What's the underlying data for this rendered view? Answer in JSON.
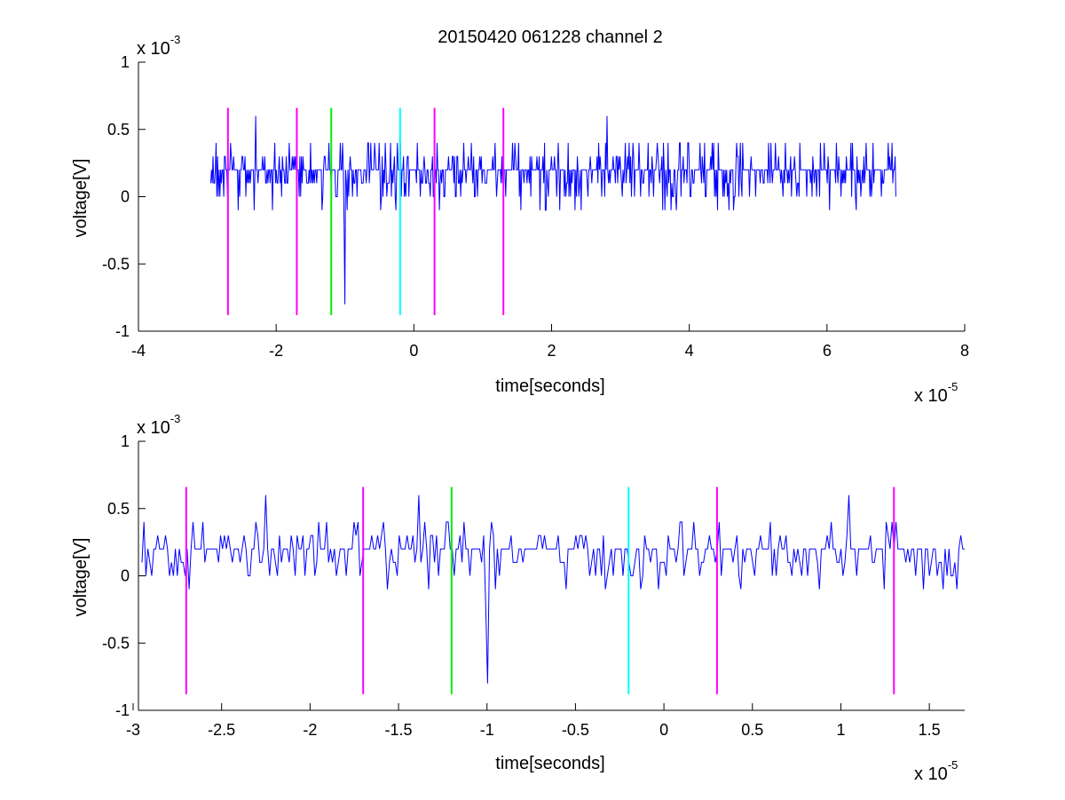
{
  "figure": {
    "title": "20150420 061228 channel 2"
  },
  "colors": {
    "signal": "#0000ff",
    "magenta_marker": "#ff00ff",
    "green_marker": "#00ee00",
    "cyan_marker": "#00ffff",
    "axes": "#000000",
    "background": "#ffffff"
  },
  "chart_data": [
    {
      "type": "line",
      "title": "20150420 061228 channel 2",
      "xlabel": "time[seconds]",
      "ylabel": "voltage[V]",
      "xlim": [
        -4e-05,
        8e-05
      ],
      "ylim": [
        -0.001,
        0.001
      ],
      "xticks": [
        -4,
        -2,
        0,
        2,
        4,
        6,
        8
      ],
      "xtick_labels": [
        "-4",
        "-2",
        "0",
        "2",
        "4",
        "6",
        "8"
      ],
      "yticks": [
        -1,
        -0.5,
        0,
        0.5,
        1
      ],
      "ytick_labels": [
        "-1",
        "-0.5",
        "0",
        "0.5",
        "1"
      ],
      "x_multiplier_label": "x 10",
      "x_multiplier_exp": "-5",
      "y_multiplier_label": "x 10",
      "y_multiplier_exp": "-3",
      "grid": false,
      "series": [
        {
          "style": "signal trace (quantized noise, 0.2e-3 V steps)",
          "x_range": [
            -2.95e-05,
            7e-05
          ],
          "level_values": [
            -0.0002,
            0,
            0.0002,
            0.0004,
            0.0006
          ],
          "notable_dip": {
            "x": -1e-05,
            "y": -0.0008
          },
          "notable_peaks": [
            {
              "x": -2.3e-05,
              "y": 0.0006
            },
            {
              "x": 2.8e-05,
              "y": 0.0006
            }
          ]
        }
      ],
      "markers": [
        {
          "x": -2.7e-05,
          "color": "magenta",
          "y": [
            -0.00088,
            0.00066
          ]
        },
        {
          "x": -1.7e-05,
          "color": "magenta",
          "y": [
            -0.00088,
            0.00066
          ]
        },
        {
          "x": -1.2e-05,
          "color": "green",
          "y": [
            -0.00088,
            0.00066
          ]
        },
        {
          "x": -2e-06,
          "color": "cyan",
          "y": [
            -0.00088,
            0.00066
          ]
        },
        {
          "x": 3e-06,
          "color": "magenta",
          "y": [
            -0.00088,
            0.00066
          ]
        },
        {
          "x": 1.3e-05,
          "color": "magenta",
          "y": [
            -0.00088,
            0.00066
          ]
        }
      ]
    },
    {
      "type": "line",
      "title": "",
      "xlabel": "time[seconds]",
      "ylabel": "voltage[V]",
      "xlim": [
        -2.97e-05,
        1.7e-05
      ],
      "ylim": [
        -0.001,
        0.001
      ],
      "xticks": [
        -3,
        -2.5,
        -2,
        -1.5,
        -1,
        -0.5,
        0,
        0.5,
        1,
        1.5
      ],
      "xtick_labels": [
        "-3",
        "-2.5",
        "-2",
        "-1.5",
        "-1",
        "-0.5",
        "0",
        "0.5",
        "1",
        "1.5"
      ],
      "yticks": [
        -1,
        -0.5,
        0,
        0.5,
        1
      ],
      "ytick_labels": [
        "-1",
        "-0.5",
        "0",
        "0.5",
        "1"
      ],
      "x_multiplier_label": "x 10",
      "x_multiplier_exp": "-5",
      "y_multiplier_label": "x 10",
      "y_multiplier_exp": "-3",
      "grid": false,
      "series": [
        {
          "style": "signal trace (zoomed view, quantized 0.2e-3 V steps)",
          "x_range": [
            -2.95e-05,
            1.7e-05
          ],
          "level_values": [
            -0.0002,
            0,
            0.0002,
            0.0004,
            0.0006
          ],
          "notable_dip": {
            "x": -1e-05,
            "y": -0.0008
          },
          "notable_peaks": [
            {
              "x": -2.25e-05,
              "y": 0.0006
            },
            {
              "x": -1.38e-05,
              "y": 0.0006
            },
            {
              "x": 1.05e-05,
              "y": 0.0006
            }
          ]
        }
      ],
      "markers": [
        {
          "x": -2.7e-05,
          "color": "magenta",
          "y": [
            -0.00088,
            0.00066
          ]
        },
        {
          "x": -1.7e-05,
          "color": "magenta",
          "y": [
            -0.00088,
            0.00066
          ]
        },
        {
          "x": -1.2e-05,
          "color": "green",
          "y": [
            -0.00088,
            0.00066
          ]
        },
        {
          "x": -2e-06,
          "color": "cyan",
          "y": [
            -0.00088,
            0.00066
          ]
        },
        {
          "x": 3e-06,
          "color": "magenta",
          "y": [
            -0.00088,
            0.00066
          ]
        },
        {
          "x": 1.3e-05,
          "color": "magenta",
          "y": [
            -0.00088,
            0.00066
          ]
        }
      ]
    }
  ]
}
